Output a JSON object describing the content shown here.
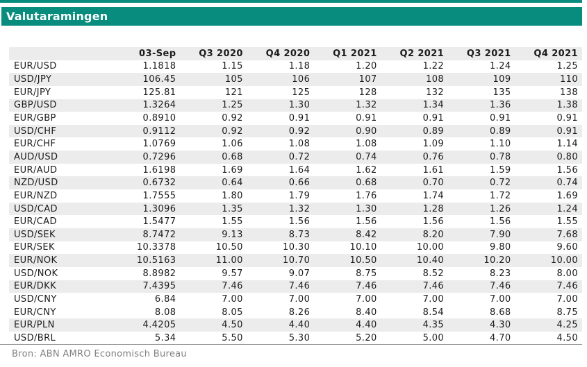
{
  "title": "Valutaramingen",
  "source": "Bron: ABN AMRO Economisch Bureau",
  "colors": {
    "accent": "#078C7E",
    "stripe": "#ECECEC",
    "header_bg": "#ECECEC",
    "text": "#1B1B1B",
    "source_text": "#808080",
    "divider": "#989898"
  },
  "table": {
    "columns": [
      "",
      "03-Sep",
      "Q3 2020",
      "Q4 2020",
      "Q1 2021",
      "Q2 2021",
      "Q3 2021",
      "Q4 2021"
    ],
    "rows": [
      {
        "pair": "EUR/USD",
        "values": [
          "1.1818",
          "1.15",
          "1.18",
          "1.20",
          "1.22",
          "1.24",
          "1.25"
        ],
        "shaded": false
      },
      {
        "pair": "USD/JPY",
        "values": [
          "106.45",
          "105",
          "106",
          "107",
          "108",
          "109",
          "110"
        ],
        "shaded": true
      },
      {
        "pair": "EUR/JPY",
        "values": [
          "125.81",
          "121",
          "125",
          "128",
          "132",
          "135",
          "138"
        ],
        "shaded": false
      },
      {
        "pair": "GBP/USD",
        "values": [
          "1.3264",
          "1.25",
          "1.30",
          "1.32",
          "1.34",
          "1.36",
          "1.38"
        ],
        "shaded": true
      },
      {
        "pair": "EUR/GBP",
        "values": [
          "0.8910",
          "0.92",
          "0.91",
          "0.91",
          "0.91",
          "0.91",
          "0.91"
        ],
        "shaded": false
      },
      {
        "pair": "USD/CHF",
        "values": [
          "0.9112",
          "0.92",
          "0.92",
          "0.90",
          "0.89",
          "0.89",
          "0.91"
        ],
        "shaded": true
      },
      {
        "pair": "EUR/CHF",
        "values": [
          "1.0769",
          "1.06",
          "1.08",
          "1.08",
          "1.09",
          "1.10",
          "1.14"
        ],
        "shaded": false
      },
      {
        "pair": "AUD/USD",
        "values": [
          "0.7296",
          "0.68",
          "0.72",
          "0.74",
          "0.76",
          "0.78",
          "0.80"
        ],
        "shaded": true
      },
      {
        "pair": "EUR/AUD",
        "values": [
          "1.6198",
          "1.69",
          "1.64",
          "1.62",
          "1.61",
          "1.59",
          "1.56"
        ],
        "shaded": false
      },
      {
        "pair": "NZD/USD",
        "values": [
          "0.6732",
          "0.64",
          "0.66",
          "0.68",
          "0.70",
          "0.72",
          "0.74"
        ],
        "shaded": true
      },
      {
        "pair": "EUR/NZD",
        "values": [
          "1.7555",
          "1.80",
          "1.79",
          "1.76",
          "1.74",
          "1.72",
          "1.69"
        ],
        "shaded": false
      },
      {
        "pair": "USD/CAD",
        "values": [
          "1.3096",
          "1.35",
          "1.32",
          "1.30",
          "1.28",
          "1.26",
          "1.24"
        ],
        "shaded": true
      },
      {
        "pair": "EUR/CAD",
        "values": [
          "1.5477",
          "1.55",
          "1.56",
          "1.56",
          "1.56",
          "1.56",
          "1.55"
        ],
        "shaded": false
      },
      {
        "pair": "USD/SEK",
        "values": [
          "8.7472",
          "9.13",
          "8.73",
          "8.42",
          "8.20",
          "7.90",
          "7.68"
        ],
        "shaded": true
      },
      {
        "pair": "EUR/SEK",
        "values": [
          "10.3378",
          "10.50",
          "10.30",
          "10.10",
          "10.00",
          "9.80",
          "9.60"
        ],
        "shaded": false
      },
      {
        "pair": "EUR/NOK",
        "values": [
          "10.5163",
          "11.00",
          "10.70",
          "10.50",
          "10.40",
          "10.20",
          "10.00"
        ],
        "shaded": true
      },
      {
        "pair": "USD/NOK",
        "values": [
          "8.8982",
          "9.57",
          "9.07",
          "8.75",
          "8.52",
          "8.23",
          "8.00"
        ],
        "shaded": false
      },
      {
        "pair": "EUR/DKK",
        "values": [
          "7.4395",
          "7.46",
          "7.46",
          "7.46",
          "7.46",
          "7.46",
          "7.46"
        ],
        "shaded": true
      },
      {
        "pair": "USD/CNY",
        "values": [
          "6.84",
          "7.00",
          "7.00",
          "7.00",
          "7.00",
          "7.00",
          "7.00"
        ],
        "shaded": false
      },
      {
        "pair": "EUR/CNY",
        "values": [
          "8.08",
          "8.05",
          "8.26",
          "8.40",
          "8.54",
          "8.68",
          "8.75"
        ],
        "shaded": false
      },
      {
        "pair": "EUR/PLN",
        "values": [
          "4.4205",
          "4.50",
          "4.40",
          "4.40",
          "4.35",
          "4.30",
          "4.25"
        ],
        "shaded": true
      },
      {
        "pair": "USD/BRL",
        "values": [
          "5.34",
          "5.50",
          "5.30",
          "5.20",
          "5.00",
          "4.70",
          "4.50"
        ],
        "shaded": false
      }
    ]
  }
}
